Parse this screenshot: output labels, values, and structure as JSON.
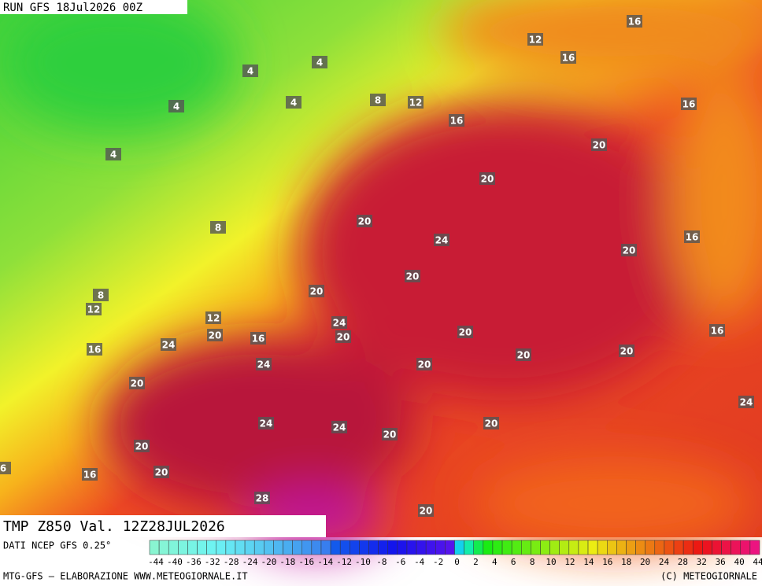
{
  "header": {
    "run": "RUN GFS 18Jul2026 00Z"
  },
  "map": {
    "contour_labels": [
      12,
      16,
      16,
      4,
      4,
      4,
      4,
      8,
      12,
      16,
      16,
      20,
      4,
      20,
      20,
      8,
      24,
      16,
      20,
      20,
      20,
      8,
      12,
      12,
      24,
      16,
      20,
      20,
      16,
      20,
      24,
      16,
      20,
      20,
      24,
      20,
      20,
      24,
      24,
      24,
      20,
      20,
      20,
      6,
      16,
      20,
      28,
      20
    ]
  },
  "footer": {
    "field": "TMP  Z850  Val.  12Z28JUL2026",
    "source": "DATI NCEP GFS 0.25°",
    "credit": "MTG-GFS — ELABORAZIONE WWW.METEOGIORNALE.IT",
    "copyright": "(C) METEOGIORNALE"
  },
  "scale": {
    "labels": [
      -44,
      -40,
      -36,
      -32,
      -28,
      -24,
      -20,
      -18,
      -16,
      -14,
      -12,
      -10,
      -8,
      -6,
      -4,
      -2,
      0,
      2,
      4,
      6,
      8,
      10,
      12,
      14,
      16,
      18,
      20,
      24,
      28,
      32,
      36,
      40,
      44
    ]
  }
}
